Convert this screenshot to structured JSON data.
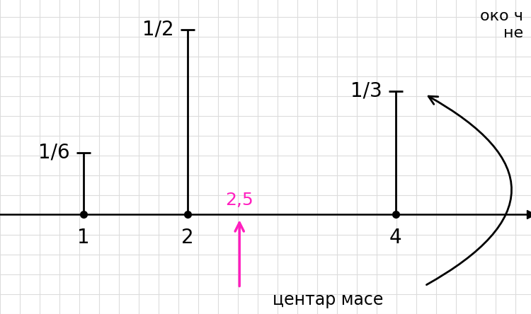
{
  "chart_data": {
    "type": "stem",
    "x": [
      1,
      2,
      4
    ],
    "values": [
      0.16667,
      0.5,
      0.33333
    ],
    "value_labels": [
      "1/6",
      "1/2",
      "1/3"
    ],
    "data_labels": true,
    "color": "#000000",
    "xlim": [
      0.2,
      5.3
    ],
    "ylim": [
      -0.27,
      0.58
    ],
    "xticks": [
      1,
      2,
      4
    ],
    "tick_labels": "x",
    "center_of_mass": {
      "x": 2.5,
      "label": "2,5",
      "text": "центар масе",
      "color": "#ff1fbf"
    },
    "side_note": [
      "око ч",
      "не"
    ]
  }
}
